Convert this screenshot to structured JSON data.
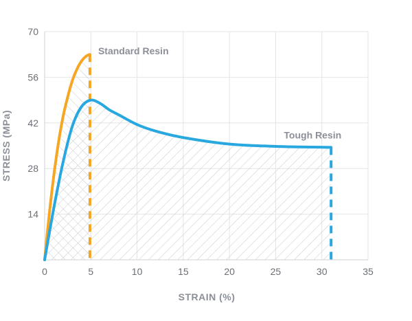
{
  "chart_data": {
    "type": "line",
    "title": "",
    "xlabel": "STRAIN (%)",
    "ylabel": "STRESS (MPa)",
    "xlim": [
      0,
      35
    ],
    "ylim": [
      0,
      70
    ],
    "xticks": [
      0,
      5,
      10,
      15,
      20,
      25,
      30,
      35
    ],
    "yticks": [
      14,
      28,
      42,
      56,
      70
    ],
    "grid": true,
    "hatched_area_under_curves": true,
    "series": [
      {
        "name": "Standard Resin",
        "color": "#f5a623",
        "points": [
          [
            0,
            0
          ],
          [
            0.5,
            14
          ],
          [
            1,
            26
          ],
          [
            1.5,
            36
          ],
          [
            2,
            44
          ],
          [
            2.5,
            50
          ],
          [
            3,
            55
          ],
          [
            3.5,
            58.5
          ],
          [
            4,
            61
          ],
          [
            4.5,
            62.5
          ],
          [
            4.9,
            63
          ]
        ],
        "break_strain": 4.9
      },
      {
        "name": "Tough Resin",
        "color": "#29a8e0",
        "points": [
          [
            0,
            0
          ],
          [
            1,
            16
          ],
          [
            2,
            30
          ],
          [
            3,
            41
          ],
          [
            4,
            47
          ],
          [
            5,
            49
          ],
          [
            6,
            48
          ],
          [
            7,
            46
          ],
          [
            8,
            44.5
          ],
          [
            10,
            41.5
          ],
          [
            12,
            39.5
          ],
          [
            15,
            37.5
          ],
          [
            20,
            35.5
          ],
          [
            25,
            34.8
          ],
          [
            31,
            34.5
          ]
        ],
        "break_strain": 31
      }
    ]
  }
}
